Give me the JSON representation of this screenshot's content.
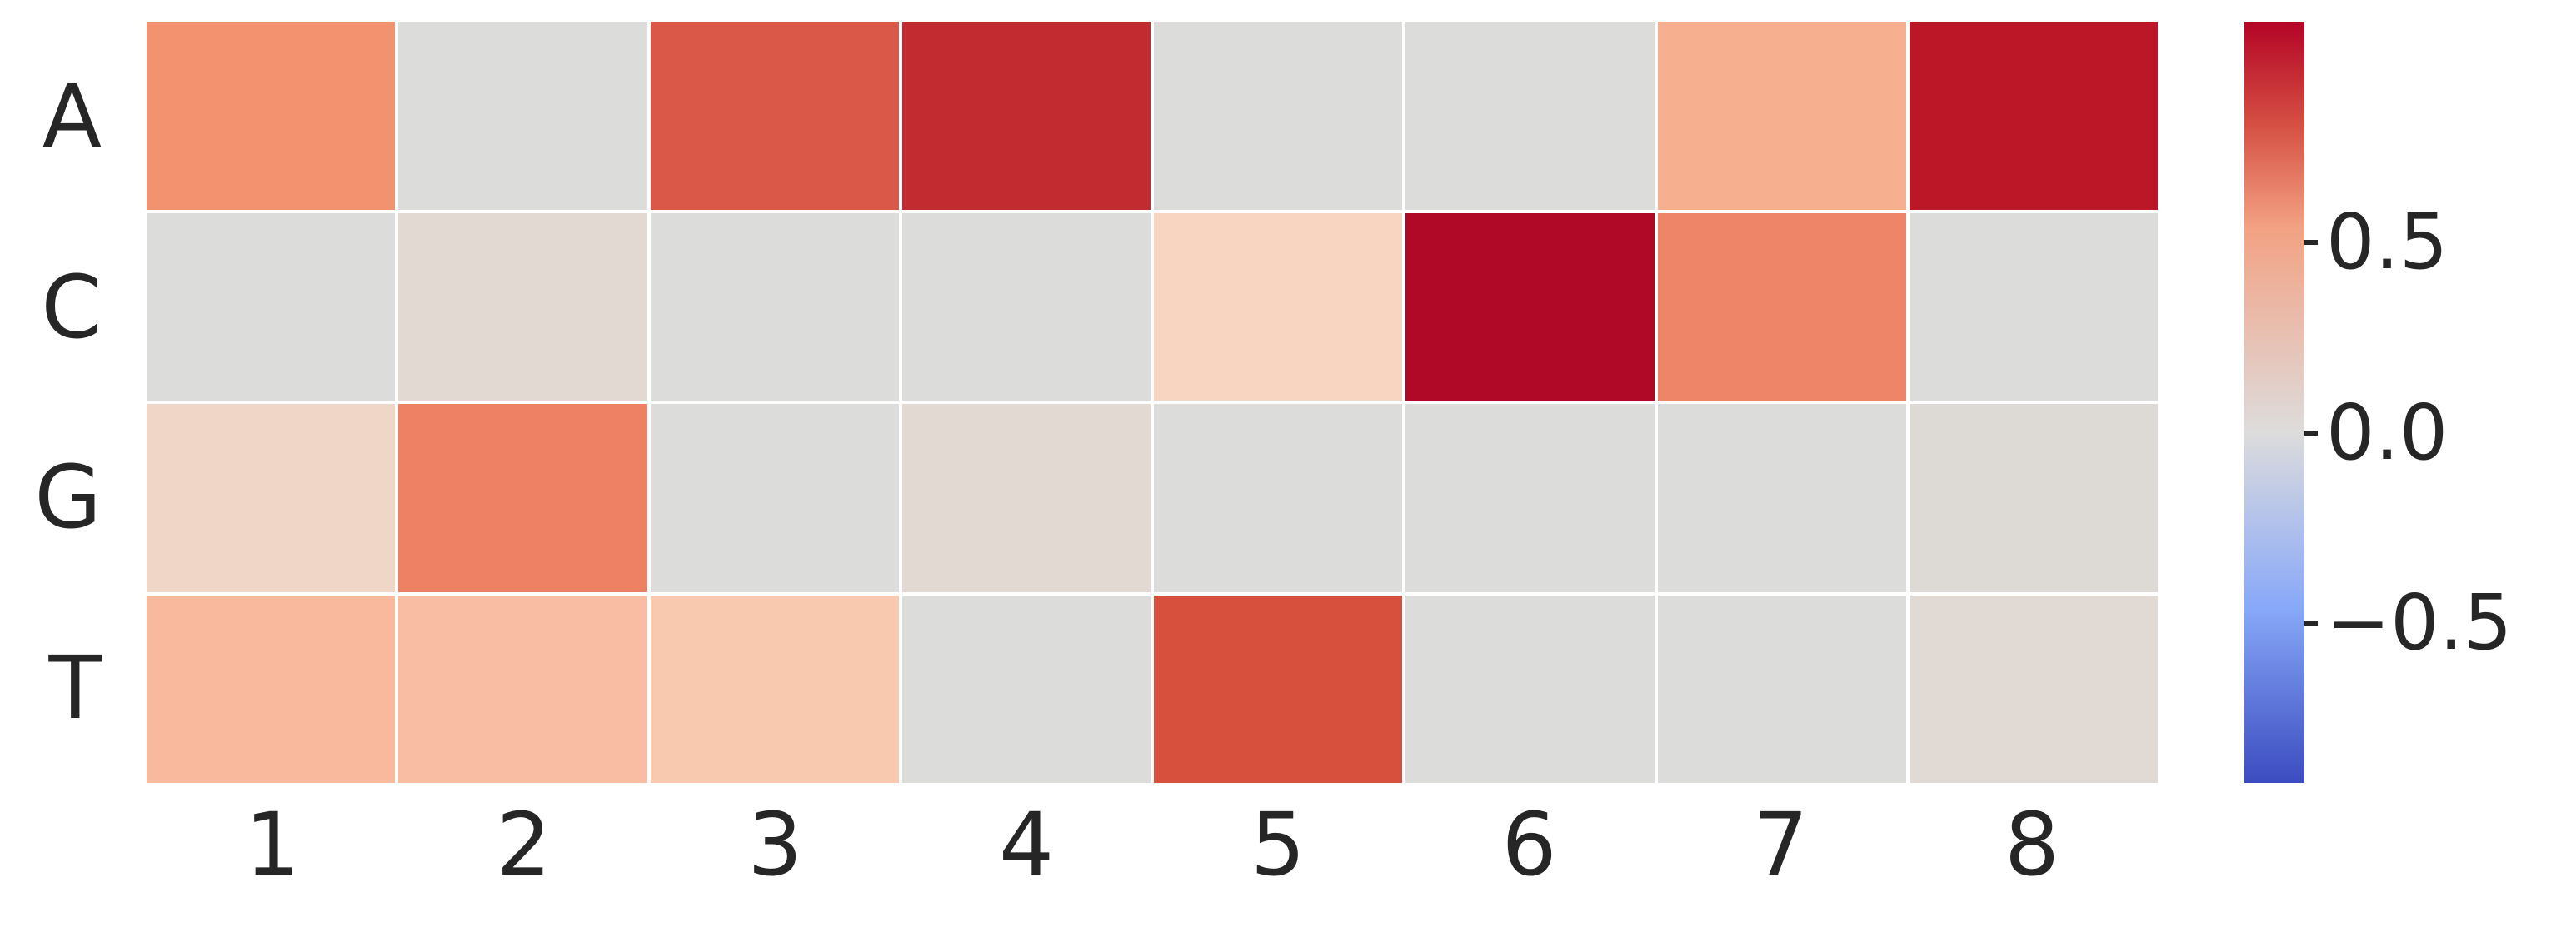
{
  "figure": {
    "background": "#ffffff",
    "text_color": "#262626",
    "grid_line_color": "#ffffff"
  },
  "chart_data": {
    "type": "heatmap",
    "title": "",
    "xlabel": "",
    "ylabel": "",
    "rows": [
      "A",
      "C",
      "G",
      "T"
    ],
    "columns": [
      "1",
      "2",
      "3",
      "4",
      "5",
      "6",
      "7",
      "8"
    ],
    "values": [
      [
        0.45,
        0.0,
        0.7,
        0.9,
        0.0,
        0.0,
        0.4,
        0.95
      ],
      [
        0.0,
        0.05,
        0.0,
        0.0,
        0.2,
        1.05,
        0.55,
        0.0
      ],
      [
        0.15,
        0.55,
        0.0,
        0.05,
        0.0,
        0.0,
        0.0,
        0.0
      ],
      [
        0.35,
        0.3,
        0.25,
        0.0,
        0.7,
        0.0,
        0.0,
        0.05
      ]
    ],
    "cell_colors": [
      [
        "#f2926f",
        "#dcdcda",
        "#d95847",
        "#c22c31",
        "#dcdcda",
        "#dcdcda",
        "#f6b08f",
        "#bc1726"
      ],
      [
        "#dcdcda",
        "#e3d9d3",
        "#dcdcda",
        "#dcdcda",
        "#f7d5c0",
        "#b00927",
        "#ee8468",
        "#dcdcda"
      ],
      [
        "#f0d6c6",
        "#ee8164",
        "#dcdcda",
        "#e3d9d3",
        "#dcdcda",
        "#dcdcda",
        "#dcdcda",
        "#dddad6"
      ],
      [
        "#f8b99c",
        "#f8bda2",
        "#f8c9af",
        "#dcdcda",
        "#d7503e",
        "#dcdcda",
        "#dcdcda",
        "#e1d9d3"
      ]
    ],
    "colorbar": {
      "colormap": "coolwarm",
      "orientation": "vertical",
      "position": "right",
      "approx_range": [
        -0.9,
        1.1
      ],
      "ticks": [
        {
          "label": "0.5",
          "pos_pct": 29
        },
        {
          "label": "0.0",
          "pos_pct": 54
        },
        {
          "label": "−0.5",
          "pos_pct": 79
        }
      ],
      "gradient": [
        {
          "color": "#b40426",
          "pos_pct": 0
        },
        {
          "color": "#d65244",
          "pos_pct": 14
        },
        {
          "color": "#f3a183",
          "pos_pct": 27
        },
        {
          "color": "#dddcdc",
          "pos_pct": 54
        },
        {
          "color": "#88a8f8",
          "pos_pct": 77
        },
        {
          "color": "#3b4cc0",
          "pos_pct": 100
        }
      ]
    },
    "legend": "none",
    "grid": "white cell separators"
  }
}
